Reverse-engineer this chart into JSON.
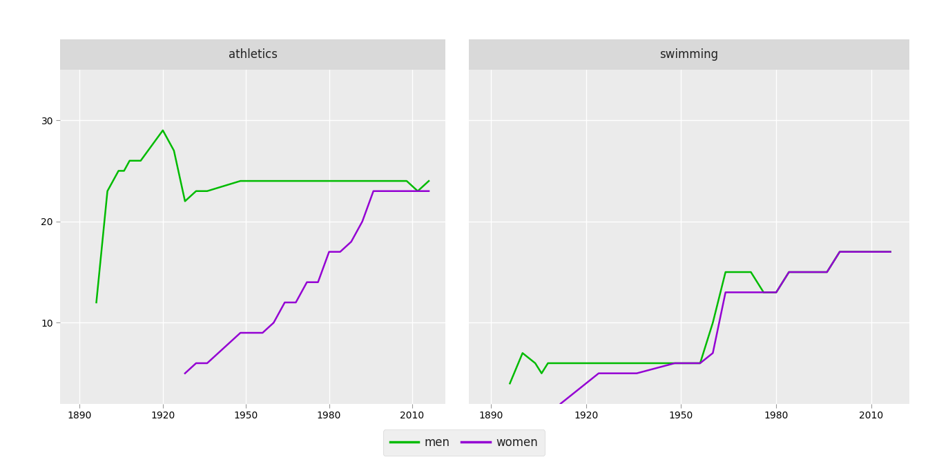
{
  "athletics_men_years": [
    1896,
    1900,
    1904,
    1906,
    1908,
    1912,
    1920,
    1924,
    1928,
    1932,
    1936,
    1948,
    1952,
    1956,
    1960,
    1964,
    1968,
    1972,
    1976,
    1980,
    1984,
    1988,
    1992,
    1996,
    2000,
    2004,
    2008,
    2012,
    2016
  ],
  "athletics_men_values": [
    12,
    23,
    25,
    25,
    26,
    26,
    29,
    27,
    22,
    23,
    23,
    24,
    24,
    24,
    24,
    24,
    24,
    24,
    24,
    24,
    24,
    24,
    24,
    24,
    24,
    24,
    24,
    23,
    24
  ],
  "athletics_women_years": [
    1928,
    1932,
    1936,
    1948,
    1952,
    1956,
    1960,
    1964,
    1968,
    1972,
    1976,
    1980,
    1984,
    1988,
    1992,
    1996,
    2000,
    2004,
    2008,
    2012,
    2016
  ],
  "athletics_women_values": [
    5,
    6,
    6,
    9,
    9,
    9,
    10,
    12,
    12,
    14,
    14,
    17,
    17,
    18,
    20,
    23,
    23,
    23,
    23,
    23,
    23
  ],
  "swimming_men_years": [
    1896,
    1900,
    1904,
    1906,
    1908,
    1912,
    1920,
    1924,
    1928,
    1932,
    1936,
    1948,
    1952,
    1956,
    1960,
    1964,
    1968,
    1972,
    1976,
    1980,
    1984,
    1988,
    1992,
    1996,
    2000,
    2004,
    2008,
    2012,
    2016
  ],
  "swimming_men_values": [
    4,
    7,
    6,
    5,
    6,
    6,
    6,
    6,
    6,
    6,
    6,
    6,
    6,
    6,
    10,
    15,
    15,
    15,
    13,
    13,
    15,
    15,
    15,
    15,
    17,
    17,
    17,
    17,
    17
  ],
  "swimming_women_years": [
    1912,
    1920,
    1924,
    1928,
    1932,
    1936,
    1948,
    1952,
    1956,
    1960,
    1964,
    1968,
    1972,
    1976,
    1980,
    1984,
    1988,
    1992,
    1996,
    2000,
    2004,
    2008,
    2012,
    2016
  ],
  "swimming_women_values": [
    2,
    4,
    5,
    5,
    5,
    5,
    6,
    6,
    6,
    7,
    13,
    13,
    13,
    13,
    13,
    15,
    15,
    15,
    15,
    17,
    17,
    17,
    17,
    17
  ],
  "men_color": "#00BB00",
  "women_color": "#9400D3",
  "background_panel": "#EBEBEB",
  "background_figure": "#FFFFFF",
  "strip_background": "#D9D9D9",
  "grid_color": "#FFFFFF",
  "title_athletics": "athletics",
  "title_swimming": "swimming",
  "legend_men": "men",
  "legend_women": "women",
  "ylim_min": 2,
  "ylim_max": 35,
  "yticks": [
    10,
    20,
    30
  ],
  "xticks": [
    1890,
    1920,
    1950,
    1980,
    2010
  ],
  "xlim_min": 1883,
  "xlim_max": 2022,
  "line_width": 1.8,
  "font_size_strip": 12,
  "font_size_tick": 10,
  "font_size_legend": 12,
  "legend_box_color": "#EBEBEB"
}
